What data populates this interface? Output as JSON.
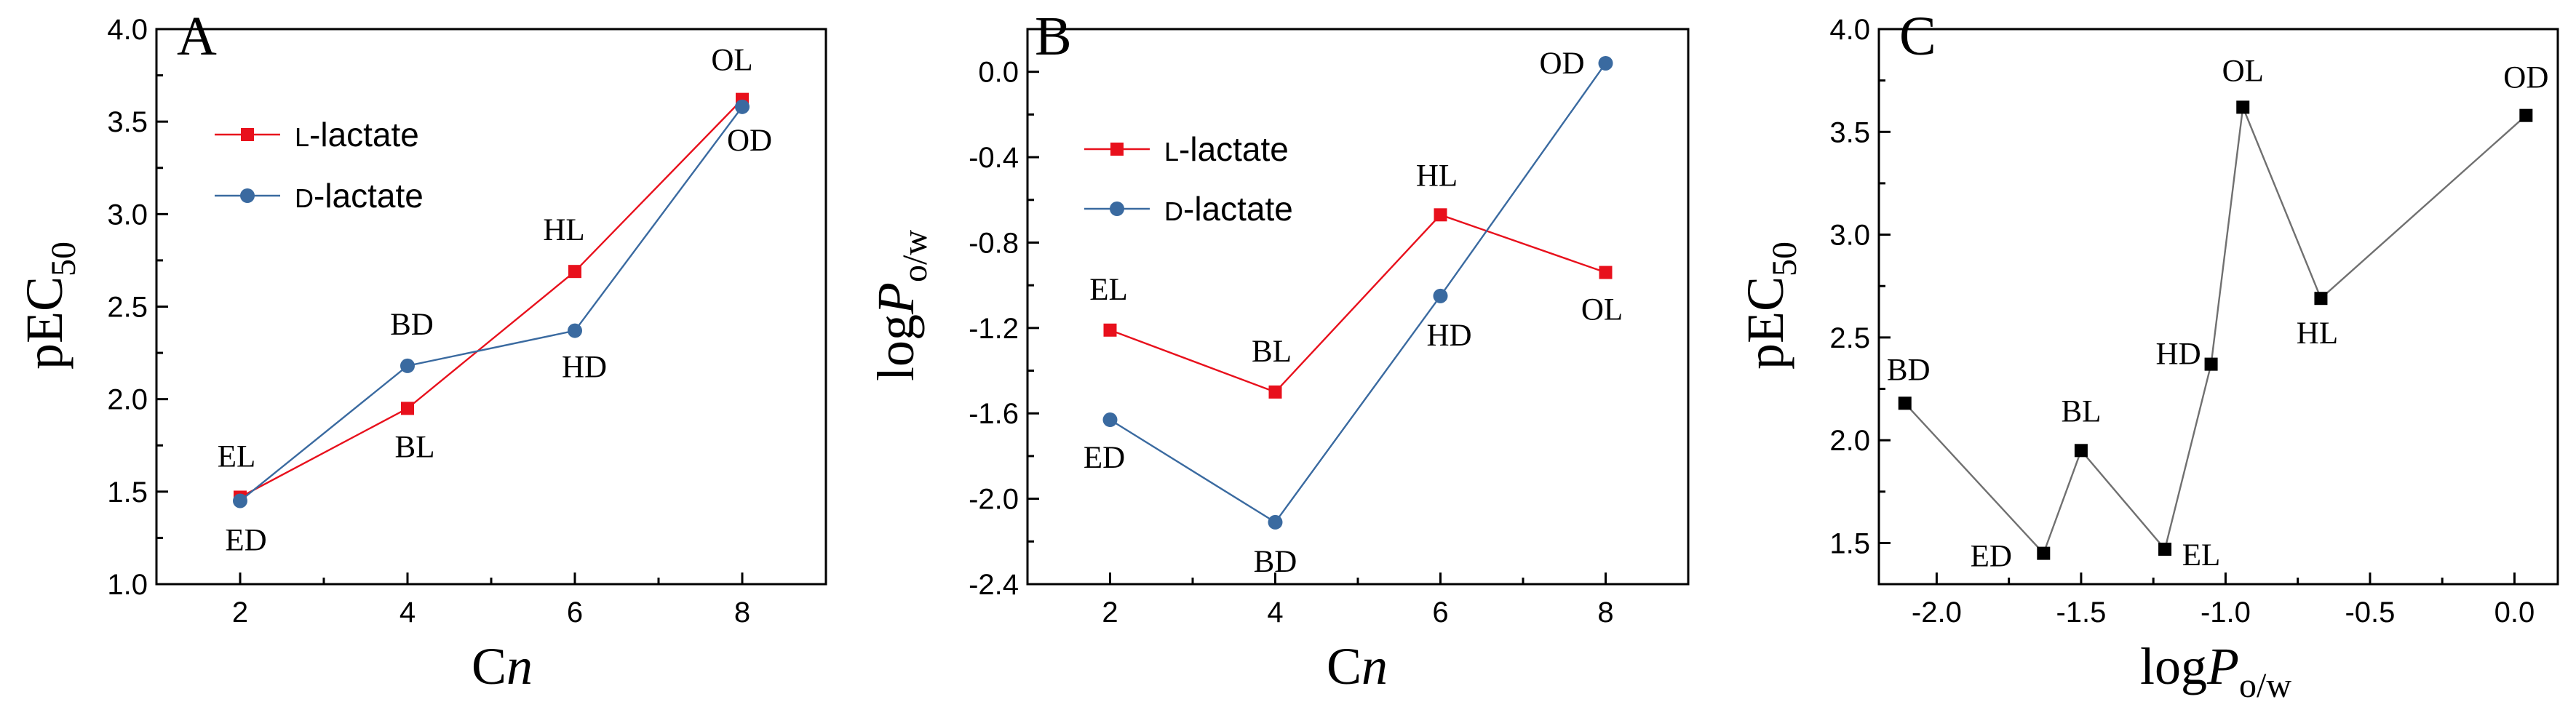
{
  "colors": {
    "l_series": "#e8101c",
    "d_series": "#3a6aa0",
    "c_series": "#707070",
    "c_marker": "#000000"
  },
  "chart_data": [
    {
      "type": "line",
      "panel": "A",
      "x": [
        2,
        4,
        6,
        8
      ],
      "xticks": [
        "2",
        "4",
        "6",
        "8"
      ],
      "xlim": [
        1,
        9
      ],
      "xlabel_main": "C",
      "xlabel_italic": "n",
      "yticks": [
        "1.0",
        "1.5",
        "2.0",
        "2.5",
        "3.0",
        "3.5",
        "4.0"
      ],
      "ylim": [
        1.0,
        4.0
      ],
      "ylabel_main": "pEC",
      "ylabel_sub": "50",
      "legend": "upper-left",
      "series": [
        {
          "name_small": "L",
          "name_rest": "-lactate",
          "color_key": "l_series",
          "marker": "square",
          "values": [
            1.47,
            1.95,
            2.69,
            3.62
          ],
          "labels": [
            "EL",
            "BL",
            "HL",
            "OL"
          ]
        },
        {
          "name_small": "D",
          "name_rest": "-lactate",
          "color_key": "d_series",
          "marker": "circle",
          "values": [
            1.45,
            2.18,
            2.37,
            3.58
          ],
          "labels": [
            "ED",
            "BD",
            "HD",
            "OD"
          ]
        }
      ]
    },
    {
      "type": "line",
      "panel": "B",
      "x": [
        2,
        4,
        6,
        8
      ],
      "xticks": [
        "2",
        "4",
        "6",
        "8"
      ],
      "xlim": [
        1,
        9
      ],
      "xlabel_main": "C",
      "xlabel_italic": "n",
      "yticks": [
        "-2.4",
        "-2.0",
        "-1.6",
        "-1.2",
        "-0.8",
        "-0.4",
        "0.0"
      ],
      "ylim": [
        -2.4,
        0.2
      ],
      "ylabel_main": "log",
      "ylabel_italic": "P",
      "ylabel_sub": "o/w",
      "legend": "upper-left",
      "series": [
        {
          "name_small": "L",
          "name_rest": "-lactate",
          "color_key": "l_series",
          "marker": "square",
          "values": [
            -1.21,
            -1.5,
            -0.67,
            -0.94
          ],
          "labels": [
            "EL",
            "BL",
            "HL",
            "OL"
          ]
        },
        {
          "name_small": "D",
          "name_rest": "-lactate",
          "color_key": "d_series",
          "marker": "circle",
          "values": [
            -1.63,
            -2.11,
            -1.05,
            0.04
          ],
          "labels": [
            "ED",
            "BD",
            "HD",
            "OD"
          ]
        }
      ]
    },
    {
      "type": "line",
      "panel": "C",
      "xticks": [
        "-2.0",
        "-1.5",
        "-1.0",
        "-0.5",
        "0.0"
      ],
      "xlim": [
        -2.2,
        0.15
      ],
      "xlabel_main": "log",
      "xlabel_italic": "P",
      "xlabel_sub": "o/w",
      "yticks": [
        "1.5",
        "2.0",
        "2.5",
        "3.0",
        "3.5",
        "4.0"
      ],
      "ylim": [
        1.3,
        4.0
      ],
      "ylabel_main": "pEC",
      "ylabel_sub": "50",
      "series": [
        {
          "color_key": "c_series",
          "marker": "square",
          "points": [
            {
              "label": "BD",
              "x": -2.11,
              "y": 2.18
            },
            {
              "label": "ED",
              "x": -1.63,
              "y": 1.45
            },
            {
              "label": "BL",
              "x": -1.5,
              "y": 1.95
            },
            {
              "label": "EL",
              "x": -1.21,
              "y": 1.47
            },
            {
              "label": "HD",
              "x": -1.05,
              "y": 2.37
            },
            {
              "label": "OL",
              "x": -0.94,
              "y": 3.62
            },
            {
              "label": "HL",
              "x": -0.67,
              "y": 2.69
            },
            {
              "label": "OD",
              "x": 0.04,
              "y": 3.58
            }
          ]
        }
      ]
    }
  ]
}
